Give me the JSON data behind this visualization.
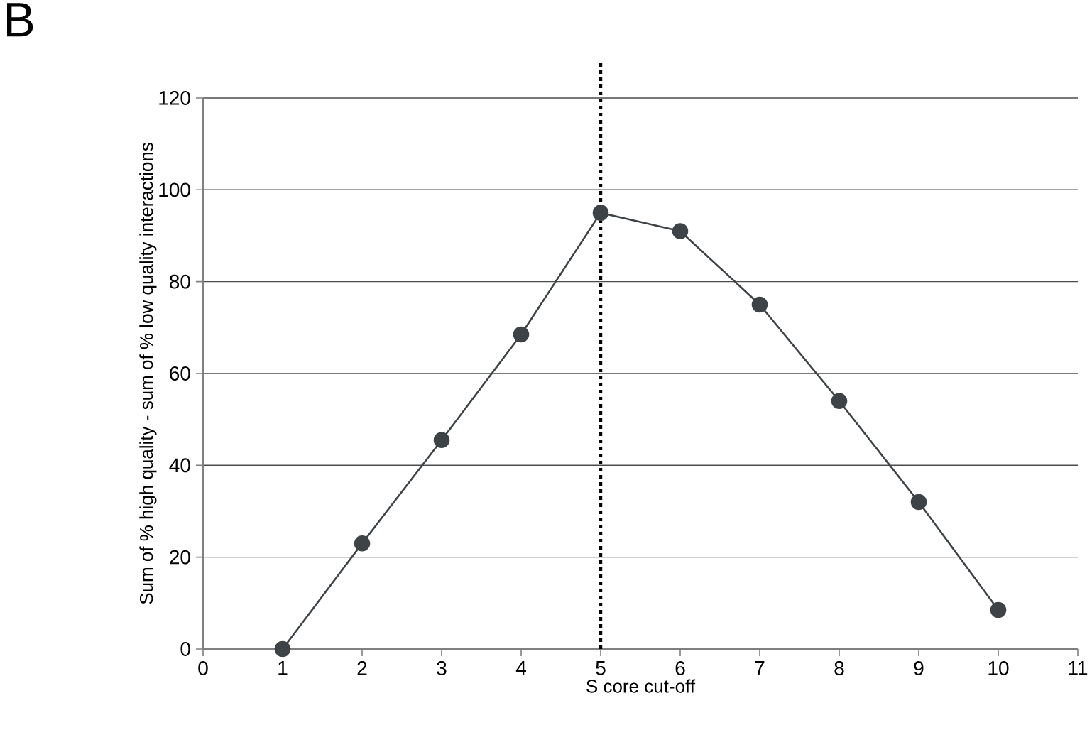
{
  "chart_data": {
    "type": "line",
    "title": "B",
    "xlabel": "S core cut-off",
    "ylabel": "Sum of % high quality - sum of % low quality interactions",
    "x": [
      1,
      2,
      3,
      4,
      5,
      6,
      7,
      8,
      9,
      10
    ],
    "series": [
      {
        "color": "#3d4347",
        "values": [
          0,
          23,
          45.5,
          68.5,
          95,
          91,
          75,
          54,
          32,
          8.5
        ]
      }
    ],
    "xlim": [
      0,
      11
    ],
    "xticks": [
      0,
      1,
      2,
      3,
      4,
      5,
      6,
      7,
      8,
      9,
      10,
      11
    ],
    "ylim": [
      0,
      120
    ],
    "yticks": [
      0,
      20,
      40,
      60,
      80,
      100,
      120
    ],
    "grid": "y",
    "marker": "circle",
    "line_style": "solid",
    "ref_lines": [
      {
        "axis": "x",
        "value": 5,
        "color": "#000000",
        "line_style": "dotted"
      }
    ]
  }
}
